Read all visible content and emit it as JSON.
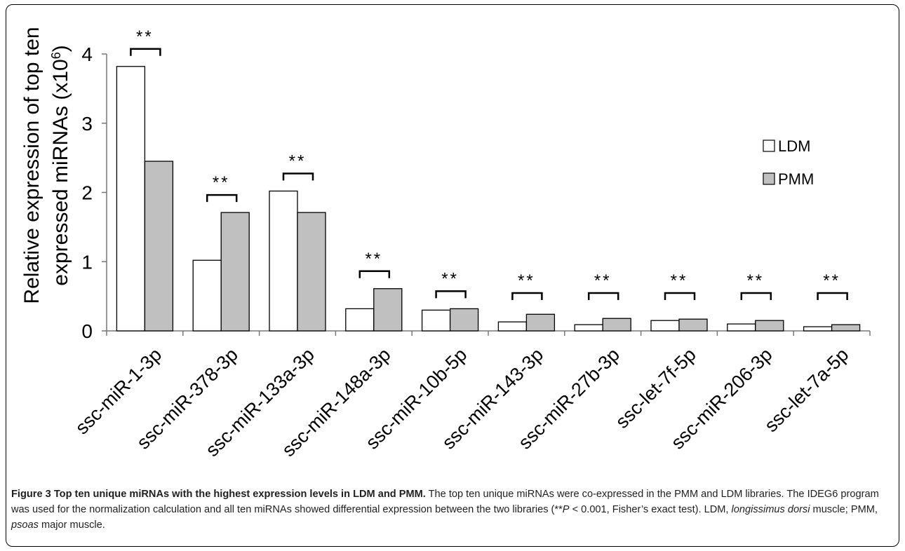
{
  "figure": {
    "caption_title": "Figure 3 Top ten unique miRNAs with the highest expression levels in LDM and PMM.",
    "caption_body_1": " The top ten unique miRNAs were co-expressed in the PMM and LDM libraries. The IDEG6 program was used for the normalization calculation and all ten miRNAs showed differential expression between the two libraries (**",
    "caption_p": "P",
    "caption_body_2": " < 0.001, Fisher’s exact test). LDM, ",
    "caption_ldm_italic": "longissimus dorsi",
    "caption_body_3": " muscle; PMM, ",
    "caption_pmm_italic": "psoas",
    "caption_body_4": " major muscle."
  },
  "chart_data": {
    "type": "bar",
    "title": "",
    "ylabel_line1": "Relative expression of  top ten",
    "ylabel_line2_prefix": "expressed miRNAs (x10",
    "ylabel_exp": "6",
    "ylabel_line2_suffix": ")",
    "xlabel": "",
    "ylim": [
      0,
      4
    ],
    "yticks": [
      "0",
      "1",
      "2",
      "3",
      "4"
    ],
    "categories": [
      "ssc-miR-1-3p",
      "ssc-miR-378-3p",
      "ssc-miR-133a-3p",
      "ssc-miR-148a-3p",
      "ssc-miR-10b-5p",
      "ssc-miR-143-3p",
      "ssc-miR-27b-3p",
      "ssc-let-7f-5p",
      "ssc-miR-206-3p",
      "ssc-let-7a-5p"
    ],
    "series": [
      {
        "name": "LDM",
        "color": "#ffffff",
        "values": [
          3.82,
          1.02,
          2.02,
          0.32,
          0.3,
          0.13,
          0.09,
          0.15,
          0.1,
          0.06
        ]
      },
      {
        "name": "PMM",
        "color": "#c0c0c0",
        "values": [
          2.45,
          1.71,
          1.71,
          0.61,
          0.32,
          0.24,
          0.18,
          0.17,
          0.15,
          0.09
        ]
      }
    ],
    "significance": [
      "**",
      "**",
      "**",
      "**",
      "**",
      "**",
      "**",
      "**",
      "**",
      "**"
    ],
    "legend_position": "right",
    "grid": false
  }
}
